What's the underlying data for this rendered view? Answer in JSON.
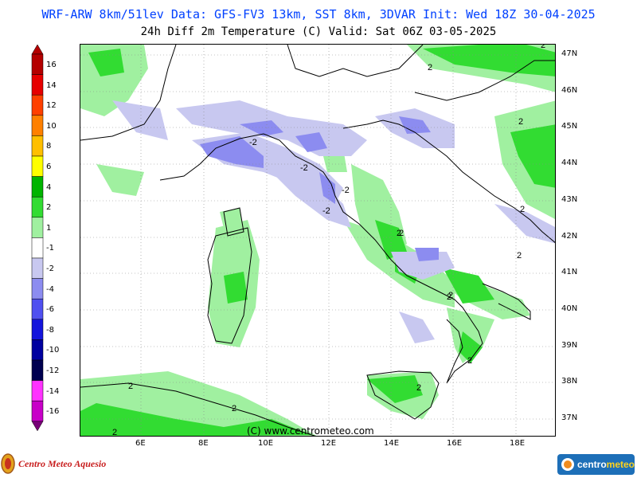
{
  "header": {
    "line1": "WRF-ARW 8km/51lev  Data: GFS-FV3 13km, SST 8km, 3DVAR  Init: Wed 18Z 30-04-2025",
    "line2": "24h Diff 2m Temperature (C)  Valid: Sat 06Z 03-05-2025"
  },
  "color_scale": {
    "levels": [
      {
        "label": "16",
        "color": "#b40000"
      },
      {
        "label": "14",
        "color": "#e60000"
      },
      {
        "label": "12",
        "color": "#ff4000"
      },
      {
        "label": "10",
        "color": "#ff8000"
      },
      {
        "label": "8",
        "color": "#ffbf00"
      },
      {
        "label": "6",
        "color": "#ffff00"
      },
      {
        "label": "4",
        "color": "#00b400"
      },
      {
        "label": "2",
        "color": "#32dc32"
      },
      {
        "label": "1",
        "color": "#a0f0a0"
      },
      {
        "label": "-1",
        "color": "#ffffff"
      },
      {
        "label": "-2",
        "color": "#c8c8f0"
      },
      {
        "label": "-4",
        "color": "#8c8cf0"
      },
      {
        "label": "-6",
        "color": "#5050f0"
      },
      {
        "label": "-8",
        "color": "#1414dc"
      },
      {
        "label": "-10",
        "color": "#0000a0"
      },
      {
        "label": "-12",
        "color": "#000050"
      },
      {
        "label": "-14",
        "color": "#ff32ff"
      },
      {
        "label": "-16",
        "color": "#c800c8"
      }
    ],
    "bottom_color": "#780078"
  },
  "axes": {
    "lat_labels": [
      "47N",
      "46N",
      "45N",
      "44N",
      "43N",
      "42N",
      "41N",
      "40N",
      "39N",
      "38N",
      "37N"
    ],
    "lon_labels": [
      "6E",
      "8E",
      "10E",
      "12E",
      "14E",
      "16E",
      "18E"
    ]
  },
  "contour_labels": [
    "2",
    "2",
    "2",
    "-2",
    "-2",
    "-2",
    "2",
    "2",
    "2",
    "2",
    "2",
    "2",
    "2",
    "2",
    "2",
    "2",
    "-2",
    "2"
  ],
  "copyright": "(C) www.centrometeo.com",
  "logos": {
    "left": "Centro Meteo Aquesio",
    "right_main": "centro",
    "right_accent": "meteo"
  },
  "colors": {
    "title_blue": "#0040ff",
    "light_green": "#a0f0a0",
    "green": "#32dc32",
    "light_blue": "#c8c8f0",
    "mid_blue": "#8c8cf0"
  }
}
